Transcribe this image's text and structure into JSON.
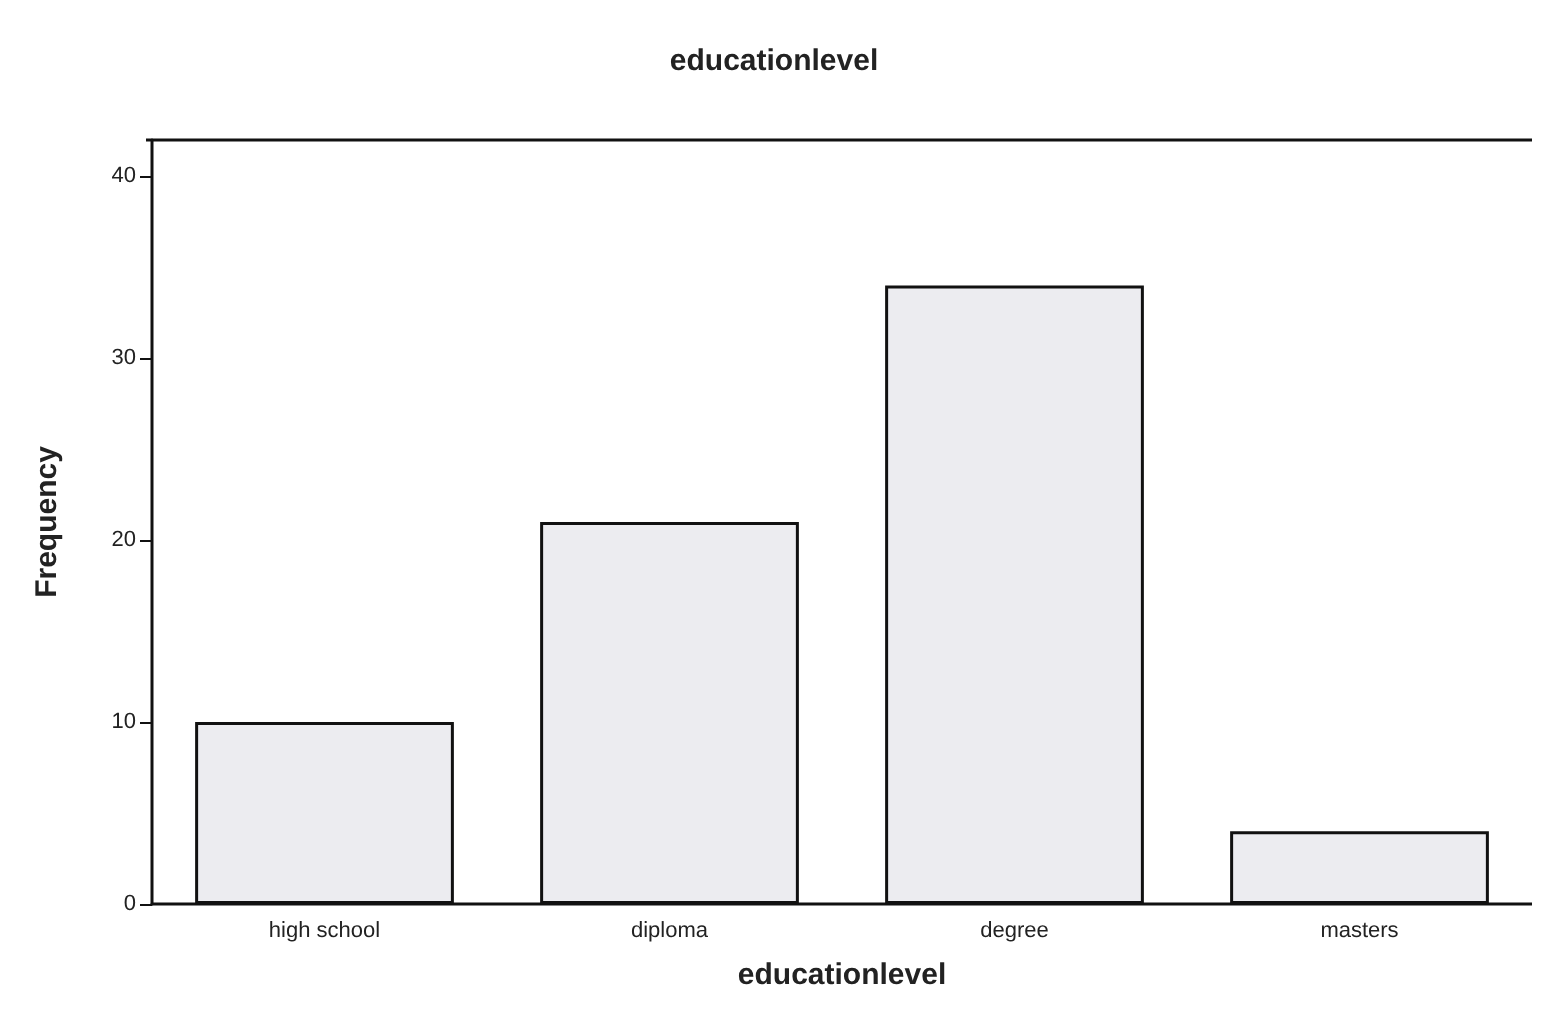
{
  "chart_data": {
    "type": "bar",
    "title": "educationlevel",
    "xlabel": "educationlevel",
    "ylabel": "Frequency",
    "categories": [
      "high school",
      "diploma",
      "degree",
      "masters"
    ],
    "values": [
      10,
      21,
      34,
      4
    ],
    "color": "#ececf0",
    "ylim": [
      0,
      42
    ],
    "yticks": [
      0,
      10,
      20,
      30,
      40
    ],
    "grid": false
  }
}
